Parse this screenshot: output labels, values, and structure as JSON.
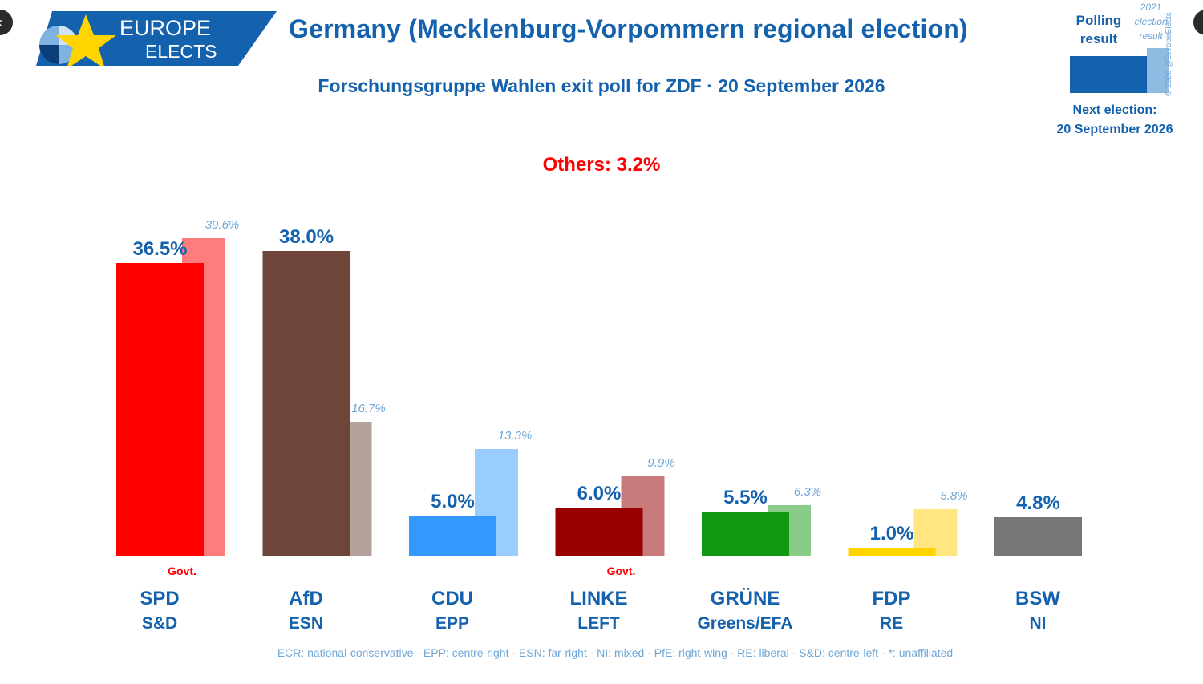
{
  "header": {
    "brand_line1": "EUROPE",
    "brand_line2": "ELECTS",
    "title": "Germany (Mecklenburg-Vorpommern regional election)",
    "subtitle": "Forschungsgruppe Wahlen exit poll for ZDF · 20 September 2026"
  },
  "legend": {
    "polling_result": [
      "Polling",
      "result"
    ],
    "previous_result": [
      "2021",
      "election",
      "result"
    ],
    "next_election_label": "Next election:",
    "next_election_date": "20 September 2026",
    "copyright": "© 2026 @EuropeElects"
  },
  "others_text": "Others: 3.2%",
  "footnote": "ECR: national-conservative · EPP: centre-right · ESN: far-right · NI: mixed · PfE: right-wing · RE: liberal · S&D: centre-left · *: unaffiliated",
  "colors": {
    "brand_blue": "#1461ad",
    "light_blue": "#6fa6d6",
    "others_red": "#ff0000"
  },
  "chart_data": {
    "type": "bar",
    "ylim": [
      0,
      40
    ],
    "categories": [
      "SPD",
      "AfD",
      "CDU",
      "LINKE",
      "GRÜNE",
      "FDP",
      "BSW"
    ],
    "groups": [
      "S&D",
      "ESN",
      "EPP",
      "LEFT",
      "Greens/EFA",
      "RE",
      "NI"
    ],
    "govt": [
      true,
      false,
      false,
      true,
      false,
      false,
      false
    ],
    "govt_label": "Govt.",
    "series": [
      {
        "name": "Polling result",
        "values": [
          36.5,
          38.0,
          5.0,
          6.0,
          5.5,
          1.0,
          4.8
        ],
        "labels": [
          "36.5%",
          "38.0%",
          "5.0%",
          "6.0%",
          "5.5%",
          "1.0%",
          "4.8%"
        ]
      },
      {
        "name": "2021 election result",
        "values": [
          39.6,
          16.7,
          13.3,
          9.9,
          6.3,
          5.8,
          null
        ],
        "labels": [
          "39.6%",
          "16.7%",
          "13.3%",
          "9.9%",
          "6.3%",
          "5.8%",
          ""
        ]
      }
    ],
    "bar_colors": [
      "#ff0000",
      "#6e4539",
      "#3399ff",
      "#990000",
      "#119911",
      "#ffd400",
      "#777777"
    ],
    "prev_colors": [
      "#ff7c7c",
      "#b5a29c",
      "#99ccff",
      "#c97b7b",
      "#88cc88",
      "#ffe680",
      "#cccccc"
    ]
  }
}
